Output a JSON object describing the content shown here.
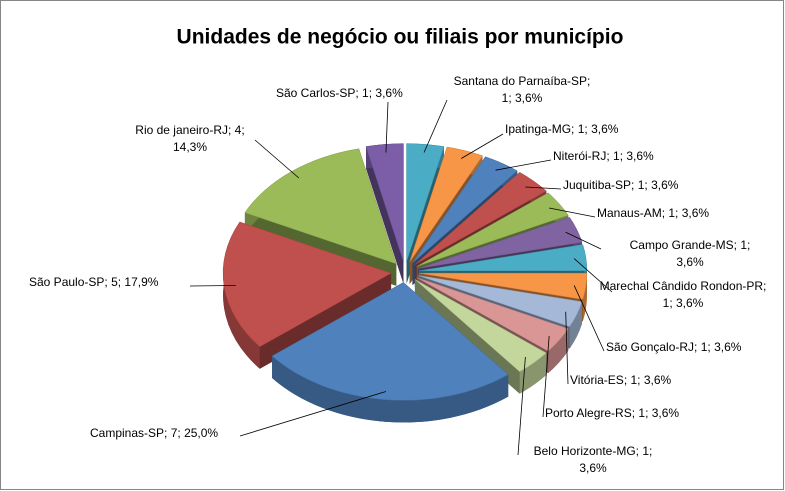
{
  "chart_data": {
    "type": "pie",
    "title": "Unidades de negócio ou filiais por município",
    "separator": "; ",
    "categories": [
      "São Carlos-SP",
      "Santana do Parnaíba-SP",
      "Ipatinga-MG",
      "Niterói-RJ",
      "Juquitiba-SP",
      "Manaus-AM",
      "Campo Grande-MS",
      "Marechal Cândido Rondon-PR",
      "São Gonçalo-RJ",
      "Vitória-ES",
      "Porto Alegre-RS",
      "Belo Horizonte-MG",
      "Campinas-SP",
      "São Paulo-SP",
      "Rio de janeiro-RJ"
    ],
    "values": [
      1,
      1,
      1,
      1,
      1,
      1,
      1,
      1,
      1,
      1,
      1,
      1,
      7,
      5,
      4
    ],
    "share_labels": [
      "3,6%",
      "3,6%",
      "3,6%",
      "3,6%",
      "3,6%",
      "3,6%",
      "3,6%",
      "3,6%",
      "3,6%",
      "3,6%",
      "3,6%",
      "3,6%",
      "25,0%",
      "17,9%",
      "14,3%"
    ],
    "colors": [
      "#7b5ea7",
      "#4bacc6",
      "#f79646",
      "#4f81bd",
      "#c0504d",
      "#9bbb59",
      "#8064a2",
      "#4bacc6",
      "#f79646",
      "#a5b8d8",
      "#d99694",
      "#c3d69b",
      "#4f81bd",
      "#c0504d",
      "#9bbb59"
    ]
  }
}
